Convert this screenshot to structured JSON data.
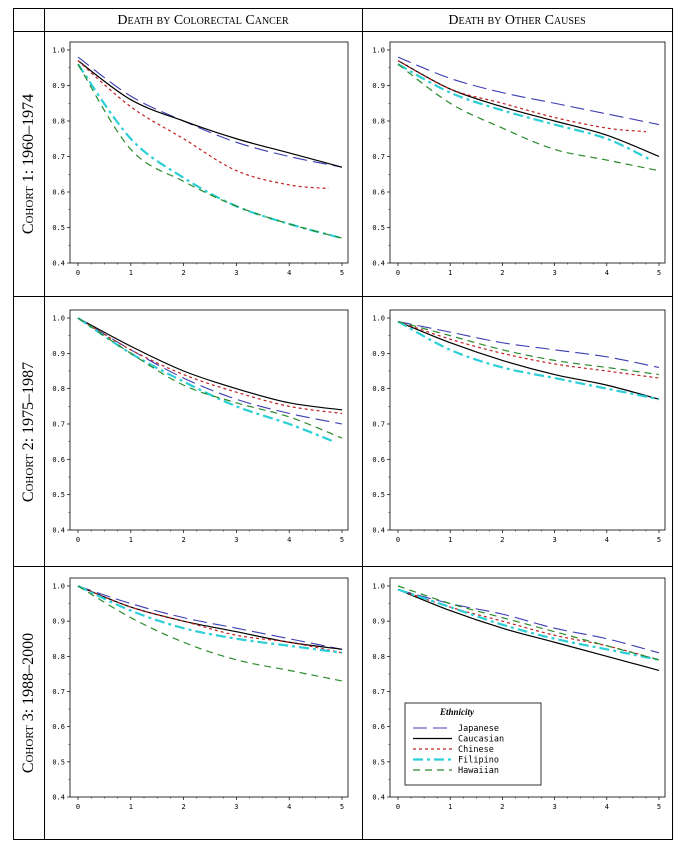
{
  "columns": {
    "left": "Death by Colorectal Cancer",
    "right": "Death by Other Causes"
  },
  "rows": [
    "Cohort 1: 1960–1974",
    "Cohort 2: 1975–1987",
    "Cohort 3: 1988–2000"
  ],
  "legend": {
    "title": "Ethnicity",
    "items": [
      "Japanese",
      "Caucasian",
      "Chinese",
      "Filipino",
      "Hawaiian"
    ]
  },
  "colors": {
    "Japanese": "#3c3cb4",
    "Caucasian": "#000000",
    "Chinese": "#c02020",
    "Filipino": "#2ccfd6",
    "Hawaiian": "#2a8a2a"
  },
  "chart_data": [
    {
      "type": "line",
      "row": "Cohort 1: 1960–1974",
      "column": "Death by Colorectal Cancer",
      "x": [
        0,
        1,
        2,
        3,
        4,
        5
      ],
      "xlim": [
        0,
        5
      ],
      "ylim": [
        0.4,
        1.0
      ],
      "xticks": [
        "0",
        "1",
        "2",
        "3",
        "4",
        "5"
      ],
      "yticks": [
        "0.4",
        "0.5",
        "0.6",
        "0.7",
        "0.8",
        "0.9",
        "1.0"
      ],
      "series": [
        {
          "name": "Japanese",
          "x": [
            0,
            1,
            2,
            3,
            4,
            5
          ],
          "values": [
            0.98,
            0.87,
            0.8,
            0.74,
            0.7,
            0.67
          ]
        },
        {
          "name": "Caucasian",
          "x": [
            0,
            1,
            2,
            3,
            4,
            5
          ],
          "values": [
            0.97,
            0.86,
            0.8,
            0.75,
            0.71,
            0.67
          ]
        },
        {
          "name": "Chinese",
          "x": [
            0,
            1,
            2,
            3,
            4,
            4.75
          ],
          "values": [
            0.97,
            0.84,
            0.75,
            0.66,
            0.62,
            0.61
          ]
        },
        {
          "name": "Filipino",
          "x": [
            0,
            1,
            2,
            3,
            4,
            5
          ],
          "values": [
            0.96,
            0.75,
            0.64,
            0.56,
            0.51,
            0.47
          ]
        },
        {
          "name": "Hawaiian",
          "x": [
            0,
            1,
            2,
            3,
            4,
            5
          ],
          "values": [
            0.96,
            0.72,
            0.63,
            0.56,
            0.51,
            0.47
          ]
        }
      ]
    },
    {
      "type": "line",
      "row": "Cohort 1: 1960–1974",
      "column": "Death by Other Causes",
      "x": [
        0,
        1,
        2,
        3,
        4,
        5
      ],
      "xlim": [
        0,
        5
      ],
      "ylim": [
        0.4,
        1.0
      ],
      "xticks": [
        "0",
        "1",
        "2",
        "3",
        "4",
        "5"
      ],
      "yticks": [
        "0.4",
        "0.5",
        "0.6",
        "0.7",
        "0.8",
        "0.9",
        "1.0"
      ],
      "series": [
        {
          "name": "Japanese",
          "x": [
            0,
            1,
            2,
            3,
            4,
            5
          ],
          "values": [
            0.98,
            0.92,
            0.88,
            0.85,
            0.82,
            0.79
          ]
        },
        {
          "name": "Caucasian",
          "x": [
            0,
            1,
            2,
            3,
            4,
            5
          ],
          "values": [
            0.97,
            0.89,
            0.84,
            0.8,
            0.76,
            0.7
          ]
        },
        {
          "name": "Chinese",
          "x": [
            0,
            1,
            2,
            3,
            4,
            4.75
          ],
          "values": [
            0.97,
            0.89,
            0.85,
            0.81,
            0.78,
            0.77
          ]
        },
        {
          "name": "Filipino",
          "x": [
            0,
            1,
            2,
            3,
            4,
            4.85
          ],
          "values": [
            0.96,
            0.88,
            0.83,
            0.79,
            0.75,
            0.69
          ]
        },
        {
          "name": "Hawaiian",
          "x": [
            0,
            1,
            2,
            3,
            4,
            5
          ],
          "values": [
            0.96,
            0.85,
            0.78,
            0.72,
            0.69,
            0.66
          ]
        }
      ]
    },
    {
      "type": "line",
      "row": "Cohort 2: 1975–1987",
      "column": "Death by Colorectal Cancer",
      "x": [
        0,
        1,
        2,
        3,
        4,
        5
      ],
      "xlim": [
        0,
        5
      ],
      "ylim": [
        0.4,
        1.0
      ],
      "xticks": [
        "0",
        "1",
        "2",
        "3",
        "4",
        "5"
      ],
      "yticks": [
        "0.4",
        "0.5",
        "0.6",
        "0.7",
        "0.8",
        "0.9",
        "1.0"
      ],
      "series": [
        {
          "name": "Japanese",
          "x": [
            0,
            1,
            2,
            3,
            4,
            5
          ],
          "values": [
            1.0,
            0.91,
            0.83,
            0.77,
            0.73,
            0.7
          ]
        },
        {
          "name": "Caucasian",
          "x": [
            0,
            1,
            2,
            3,
            4,
            5
          ],
          "values": [
            1.0,
            0.92,
            0.85,
            0.8,
            0.76,
            0.74
          ]
        },
        {
          "name": "Chinese",
          "x": [
            0,
            1,
            2,
            3,
            4,
            5
          ],
          "values": [
            1.0,
            0.91,
            0.84,
            0.79,
            0.75,
            0.73
          ]
        },
        {
          "name": "Filipino",
          "x": [
            0,
            1,
            2,
            3,
            4,
            4.85
          ],
          "values": [
            1.0,
            0.9,
            0.82,
            0.75,
            0.7,
            0.65
          ]
        },
        {
          "name": "Hawaiian",
          "x": [
            0,
            1,
            2,
            3,
            4,
            5
          ],
          "values": [
            1.0,
            0.9,
            0.81,
            0.76,
            0.72,
            0.66
          ]
        }
      ]
    },
    {
      "type": "line",
      "row": "Cohort 2: 1975–1987",
      "column": "Death by Other Causes",
      "x": [
        0,
        1,
        2,
        3,
        4,
        5
      ],
      "xlim": [
        0,
        5
      ],
      "ylim": [
        0.4,
        1.0
      ],
      "xticks": [
        "0",
        "1",
        "2",
        "3",
        "4",
        "5"
      ],
      "yticks": [
        "0.4",
        "0.5",
        "0.6",
        "0.7",
        "0.8",
        "0.9",
        "1.0"
      ],
      "series": [
        {
          "name": "Japanese",
          "x": [
            0,
            1,
            2,
            3,
            4,
            5
          ],
          "values": [
            0.99,
            0.96,
            0.93,
            0.91,
            0.89,
            0.86
          ]
        },
        {
          "name": "Caucasian",
          "x": [
            0,
            1,
            2,
            3,
            4,
            5
          ],
          "values": [
            0.99,
            0.93,
            0.88,
            0.84,
            0.81,
            0.77
          ]
        },
        {
          "name": "Chinese",
          "x": [
            0,
            1,
            2,
            3,
            4,
            5
          ],
          "values": [
            0.99,
            0.94,
            0.9,
            0.87,
            0.85,
            0.83
          ]
        },
        {
          "name": "Filipino",
          "x": [
            0,
            1,
            2,
            3,
            4,
            5
          ],
          "values": [
            0.99,
            0.91,
            0.86,
            0.83,
            0.8,
            0.77
          ]
        },
        {
          "name": "Hawaiian",
          "x": [
            0,
            1,
            2,
            3,
            4,
            5
          ],
          "values": [
            0.99,
            0.95,
            0.91,
            0.88,
            0.86,
            0.84
          ]
        }
      ]
    },
    {
      "type": "line",
      "row": "Cohort 3: 1988–2000",
      "column": "Death by Colorectal Cancer",
      "x": [
        0,
        1,
        2,
        3,
        4,
        5
      ],
      "xlim": [
        0,
        5
      ],
      "ylim": [
        0.4,
        1.0
      ],
      "xticks": [
        "0",
        "1",
        "2",
        "3",
        "4",
        "5"
      ],
      "yticks": [
        "0.4",
        "0.5",
        "0.6",
        "0.7",
        "0.8",
        "0.9",
        "1.0"
      ],
      "series": [
        {
          "name": "Japanese",
          "x": [
            0,
            1,
            2,
            3,
            4,
            5
          ],
          "values": [
            1.0,
            0.95,
            0.91,
            0.88,
            0.85,
            0.82
          ]
        },
        {
          "name": "Caucasian",
          "x": [
            0,
            1,
            2,
            3,
            4,
            5
          ],
          "values": [
            1.0,
            0.94,
            0.9,
            0.87,
            0.84,
            0.82
          ]
        },
        {
          "name": "Chinese",
          "x": [
            0,
            1,
            2,
            3,
            4,
            5
          ],
          "values": [
            1.0,
            0.94,
            0.9,
            0.86,
            0.84,
            0.81
          ]
        },
        {
          "name": "Filipino",
          "x": [
            0,
            1,
            2,
            3,
            4,
            5
          ],
          "values": [
            1.0,
            0.93,
            0.88,
            0.85,
            0.83,
            0.81
          ]
        },
        {
          "name": "Hawaiian",
          "x": [
            0,
            1,
            2,
            3,
            4,
            5
          ],
          "values": [
            1.0,
            0.91,
            0.84,
            0.79,
            0.76,
            0.73
          ]
        }
      ]
    },
    {
      "type": "line",
      "row": "Cohort 3: 1988–2000",
      "column": "Death by Other Causes",
      "x": [
        0,
        1,
        2,
        3,
        4,
        5
      ],
      "xlim": [
        0,
        5
      ],
      "ylim": [
        0.4,
        1.0
      ],
      "xticks": [
        "0",
        "1",
        "2",
        "3",
        "4",
        "5"
      ],
      "yticks": [
        "0.4",
        "0.5",
        "0.6",
        "0.7",
        "0.8",
        "0.9",
        "1.0"
      ],
      "series": [
        {
          "name": "Japanese",
          "x": [
            0,
            1,
            2,
            3,
            4,
            5
          ],
          "values": [
            0.99,
            0.95,
            0.92,
            0.88,
            0.85,
            0.81
          ]
        },
        {
          "name": "Caucasian",
          "x": [
            0,
            1,
            2,
            3,
            4,
            5
          ],
          "values": [
            0.99,
            0.93,
            0.88,
            0.84,
            0.8,
            0.76
          ]
        },
        {
          "name": "Chinese",
          "x": [
            0,
            1,
            2,
            3,
            4,
            5
          ],
          "values": [
            0.99,
            0.94,
            0.9,
            0.86,
            0.83,
            0.79
          ]
        },
        {
          "name": "Filipino",
          "x": [
            0,
            1,
            2,
            3,
            4,
            5
          ],
          "values": [
            0.99,
            0.94,
            0.89,
            0.85,
            0.82,
            0.79
          ]
        },
        {
          "name": "Hawaiian",
          "x": [
            0,
            1,
            2,
            3,
            4,
            5
          ],
          "values": [
            1.0,
            0.95,
            0.91,
            0.87,
            0.83,
            0.79
          ]
        }
      ]
    }
  ]
}
